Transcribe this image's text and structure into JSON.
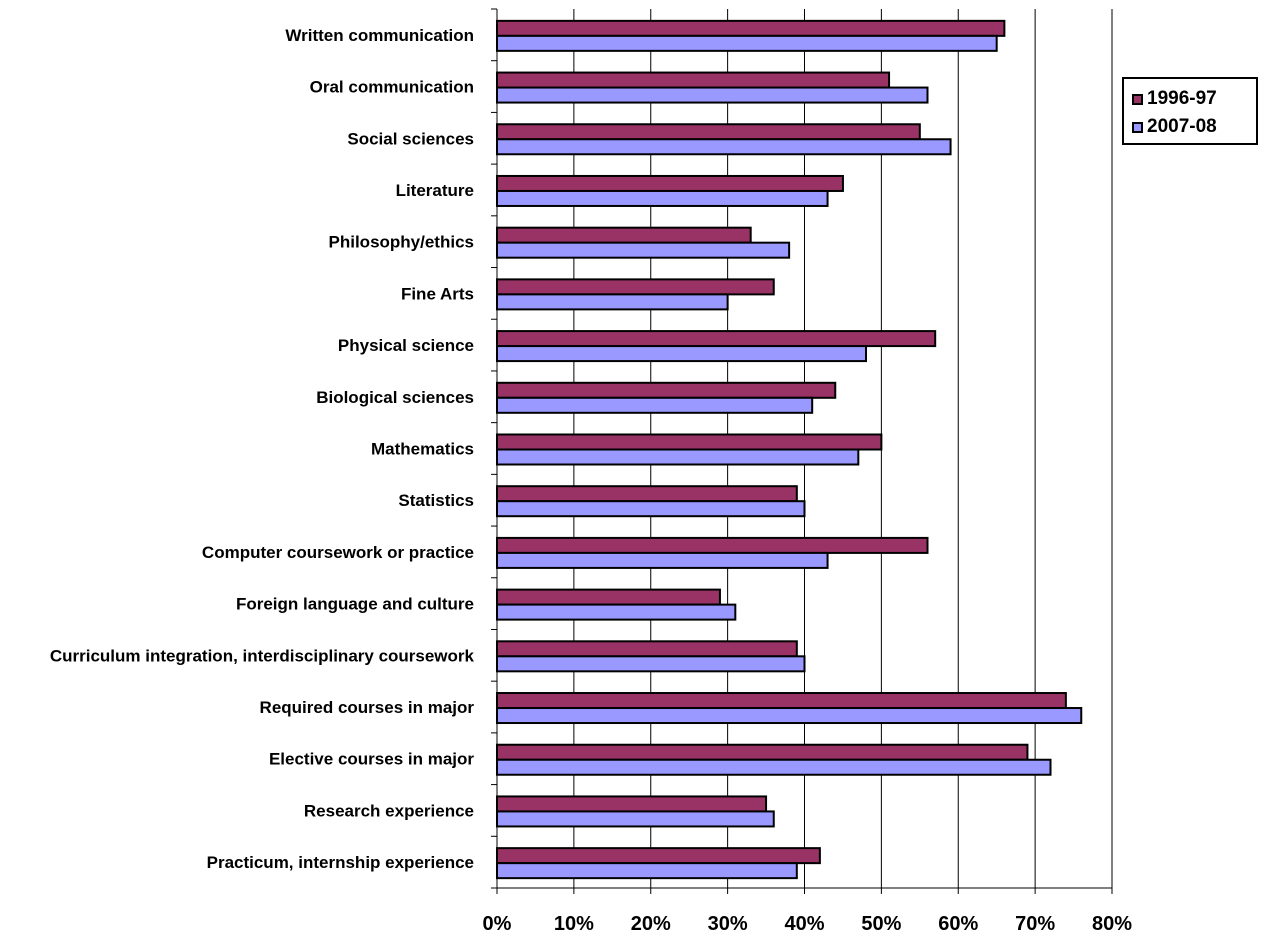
{
  "chart_data": {
    "type": "bar",
    "orientation": "horizontal",
    "categories": [
      "Written communication",
      "Oral communication",
      "Social sciences",
      "Literature",
      "Philosophy/ethics",
      "Fine Arts",
      "Physical science",
      "Biological sciences",
      "Mathematics",
      "Statistics",
      "Computer coursework or practice",
      "Foreign language and culture",
      "Curriculum integration, interdisciplinary coursework",
      "Required courses in major",
      "Elective courses in major",
      "Research experience",
      "Practicum, internship experience"
    ],
    "series": [
      {
        "name": "1996-97",
        "color": "#993366",
        "values": [
          66,
          51,
          55,
          45,
          33,
          36,
          57,
          44,
          50,
          39,
          56,
          29,
          39,
          74,
          69,
          35,
          42
        ]
      },
      {
        "name": "2007-08",
        "color": "#9999ff",
        "values": [
          65,
          56,
          59,
          43,
          38,
          30,
          48,
          41,
          47,
          40,
          43,
          31,
          40,
          76,
          72,
          36,
          39
        ]
      }
    ],
    "xlim": [
      0,
      80
    ],
    "x_ticks": [
      "0%",
      "10%",
      "20%",
      "30%",
      "40%",
      "50%",
      "60%",
      "70%",
      "80%"
    ],
    "grid": "vertical major gridlines",
    "legend_position": "top-right",
    "title": "",
    "xlabel": "",
    "ylabel": ""
  }
}
